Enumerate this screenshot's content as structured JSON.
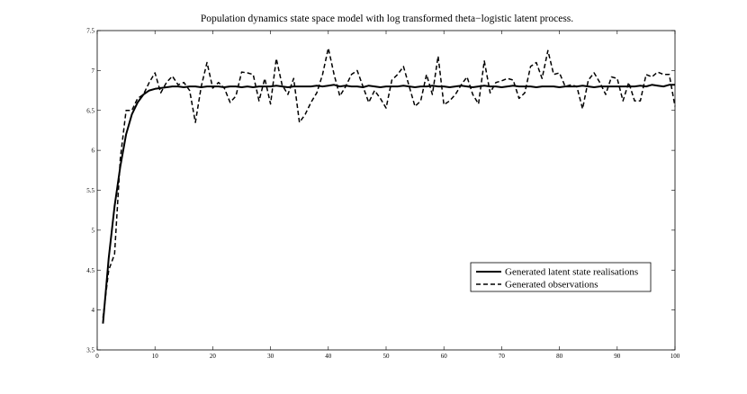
{
  "chart_data": {
    "type": "line",
    "title": "Population dynamics state space model with log transformed theta−logistic latent process.",
    "xlabel": "",
    "ylabel": "",
    "xlim": [
      0,
      100
    ],
    "ylim": [
      3.5,
      7.5
    ],
    "xticks": [
      0,
      10,
      20,
      30,
      40,
      50,
      60,
      70,
      80,
      90,
      100
    ],
    "yticks": [
      3.5,
      4,
      4.5,
      5,
      5.5,
      6,
      6.5,
      7,
      7.5
    ],
    "grid": false,
    "legend_position": "lower-right",
    "series": [
      {
        "name": "Generated latent state realisations",
        "style": "solid",
        "color": "#000000",
        "x": [
          1,
          2,
          3,
          4,
          5,
          6,
          7,
          8,
          9,
          10,
          11,
          12,
          13,
          14,
          15,
          16,
          17,
          18,
          19,
          20,
          21,
          22,
          23,
          24,
          25,
          26,
          27,
          28,
          29,
          30,
          31,
          32,
          33,
          34,
          35,
          36,
          37,
          38,
          39,
          40,
          41,
          42,
          43,
          44,
          45,
          46,
          47,
          48,
          49,
          50,
          51,
          52,
          53,
          54,
          55,
          56,
          57,
          58,
          59,
          60,
          61,
          62,
          63,
          64,
          65,
          66,
          67,
          68,
          69,
          70,
          71,
          72,
          73,
          74,
          75,
          76,
          77,
          78,
          79,
          80,
          81,
          82,
          83,
          84,
          85,
          86,
          87,
          88,
          89,
          90,
          91,
          92,
          93,
          94,
          95,
          96,
          97,
          98,
          99,
          100
        ],
        "values": [
          3.83,
          4.65,
          5.3,
          5.8,
          6.2,
          6.45,
          6.6,
          6.7,
          6.75,
          6.77,
          6.78,
          6.79,
          6.8,
          6.8,
          6.79,
          6.8,
          6.8,
          6.79,
          6.8,
          6.8,
          6.8,
          6.79,
          6.8,
          6.8,
          6.79,
          6.8,
          6.79,
          6.8,
          6.8,
          6.8,
          6.81,
          6.8,
          6.79,
          6.8,
          6.8,
          6.8,
          6.8,
          6.81,
          6.8,
          6.81,
          6.82,
          6.8,
          6.81,
          6.8,
          6.8,
          6.79,
          6.81,
          6.8,
          6.79,
          6.8,
          6.8,
          6.8,
          6.81,
          6.8,
          6.79,
          6.8,
          6.8,
          6.81,
          6.8,
          6.8,
          6.79,
          6.8,
          6.81,
          6.8,
          6.79,
          6.8,
          6.81,
          6.8,
          6.8,
          6.79,
          6.8,
          6.81,
          6.8,
          6.8,
          6.8,
          6.79,
          6.8,
          6.8,
          6.8,
          6.79,
          6.8,
          6.8,
          6.8,
          6.81,
          6.8,
          6.79,
          6.8,
          6.8,
          6.8,
          6.8,
          6.8,
          6.8,
          6.8,
          6.81,
          6.8,
          6.82,
          6.81,
          6.8,
          6.82,
          6.82
        ]
      },
      {
        "name": "Generated observations",
        "style": "dashed",
        "color": "#000000",
        "x": [
          1,
          2,
          3,
          4,
          5,
          6,
          7,
          8,
          9,
          10,
          11,
          12,
          13,
          14,
          15,
          16,
          17,
          18,
          19,
          20,
          21,
          22,
          23,
          24,
          25,
          26,
          27,
          28,
          29,
          30,
          31,
          32,
          33,
          34,
          35,
          36,
          37,
          38,
          39,
          40,
          41,
          42,
          43,
          44,
          45,
          46,
          47,
          48,
          49,
          50,
          51,
          52,
          53,
          54,
          55,
          56,
          57,
          58,
          59,
          60,
          61,
          62,
          63,
          64,
          65,
          66,
          67,
          68,
          69,
          70,
          71,
          72,
          73,
          74,
          75,
          76,
          77,
          78,
          79,
          80,
          81,
          82,
          83,
          84,
          85,
          86,
          87,
          88,
          89,
          90,
          91,
          92,
          93,
          94,
          95,
          96,
          97,
          98,
          99,
          100
        ],
        "values": [
          3.9,
          4.5,
          4.7,
          5.9,
          6.5,
          6.5,
          6.65,
          6.7,
          6.85,
          6.97,
          6.72,
          6.85,
          6.93,
          6.82,
          6.85,
          6.75,
          6.35,
          6.8,
          7.1,
          6.78,
          6.85,
          6.78,
          6.6,
          6.68,
          6.98,
          6.97,
          6.95,
          6.62,
          6.9,
          6.58,
          7.15,
          6.82,
          6.7,
          6.9,
          6.35,
          6.45,
          6.6,
          6.72,
          6.95,
          7.28,
          6.95,
          6.68,
          6.8,
          6.95,
          7.0,
          6.8,
          6.6,
          6.75,
          6.65,
          6.53,
          6.88,
          6.95,
          7.05,
          6.8,
          6.55,
          6.62,
          6.95,
          6.7,
          7.18,
          6.57,
          6.62,
          6.7,
          6.82,
          6.92,
          6.7,
          6.58,
          7.12,
          6.72,
          6.85,
          6.87,
          6.9,
          6.88,
          6.65,
          6.72,
          7.05,
          7.1,
          6.9,
          7.25,
          6.95,
          6.97,
          6.8,
          6.82,
          6.8,
          6.52,
          6.88,
          6.97,
          6.85,
          6.7,
          6.92,
          6.9,
          6.62,
          6.85,
          6.62,
          6.62,
          6.95,
          6.92,
          6.98,
          6.95,
          6.95,
          6.55
        ]
      }
    ]
  }
}
